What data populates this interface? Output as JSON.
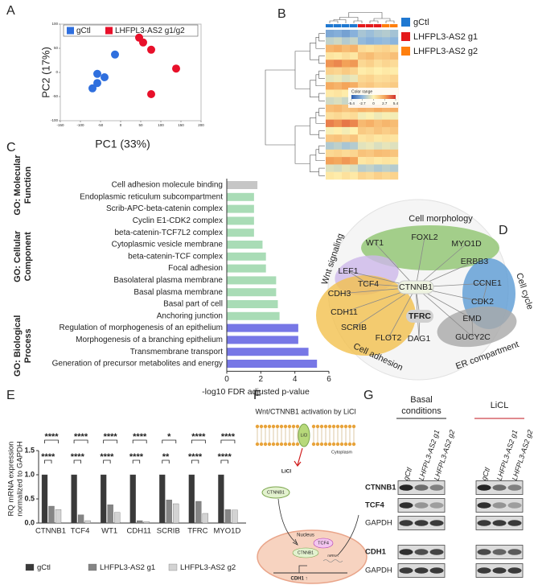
{
  "panel_labels": [
    "A",
    "B",
    "C",
    "D",
    "E",
    "F",
    "G"
  ],
  "chart_data": [
    {
      "type": "scatter",
      "x_label": "PC1 (33%)",
      "y_label": "PC2 (17%)",
      "xlim": [
        -150,
        200
      ],
      "xticks": [
        -150,
        -100,
        -50,
        0,
        50,
        100,
        150,
        200
      ],
      "ylim": [
        -100,
        100
      ],
      "yticks": [
        -100,
        -50,
        0,
        50,
        100
      ],
      "series": [
        {
          "name": "gCtl",
          "color": "#2f6fde",
          "x": [
            -14,
            -58,
            -40,
            -58,
            -70
          ],
          "y": [
            37,
            -3,
            -10,
            -22,
            -33
          ]
        },
        {
          "name": "LHFPL3-AS2 g1/g2",
          "color": "#e8102a",
          "x": [
            46,
            56,
            76,
            138,
            76
          ],
          "y": [
            72,
            62,
            47,
            8,
            -45
          ]
        }
      ]
    },
    {
      "type": "heatmap",
      "legend_title": "Color range",
      "zlim": [
        -5.4,
        5.4
      ],
      "zticks": [
        -5.4,
        -2.7,
        0,
        2.7,
        5.4
      ],
      "colors": [
        "#2c5fb0",
        "#8fb8de",
        "#fff2b0",
        "#f4a55a",
        "#d2322d"
      ],
      "series": [
        {
          "name": "gCtl",
          "color": "#1f78d1",
          "values": [
            [
              -3.2,
              -3.0,
              -3.4,
              -2.9
            ],
            [
              -1.5,
              -1.2,
              -1.8,
              -1.4
            ],
            [
              2.1,
              2.4,
              1.9,
              2.2
            ],
            [
              0.5,
              0.3,
              0.7,
              0.4
            ],
            [
              3.1,
              3.4,
              2.8,
              3.0
            ],
            [
              1.2,
              1.0,
              1.4,
              1.1
            ],
            [
              -0.6,
              -0.4,
              -0.8,
              -0.5
            ],
            [
              2.5,
              2.2,
              2.7,
              2.4
            ],
            [
              0.3,
              0.5,
              0.2,
              0.4
            ],
            [
              -1.1,
              -0.9,
              -1.3,
              -1.0
            ],
            [
              1.8,
              2.0,
              1.6,
              1.9
            ],
            [
              0.7,
              0.9,
              0.6,
              0.8
            ],
            [
              3.6,
              3.2,
              3.8,
              3.4
            ],
            [
              -0.2,
              0.1,
              -0.3,
              0.0
            ],
            [
              1.5,
              1.7,
              1.3,
              1.6
            ],
            [
              -1.9,
              -1.6,
              -2.1,
              -1.8
            ],
            [
              0.9,
              1.1,
              0.8,
              1.0
            ],
            [
              2.8,
              2.6,
              3.0,
              2.7
            ],
            [
              -0.8,
              -1.0,
              -0.6,
              -0.9
            ],
            [
              0.4,
              0.2,
              0.6,
              0.3
            ]
          ]
        },
        {
          "name": "LHFPL3-AS2 g1",
          "color": "#e41a1c",
          "values": [
            [
              -2.1,
              -2.4,
              -2.0
            ],
            [
              -2.6,
              -2.9,
              -2.7
            ],
            [
              0.8,
              0.6,
              0.9
            ],
            [
              1.6,
              1.9,
              1.4
            ],
            [
              0.9,
              1.2,
              0.7
            ],
            [
              0.2,
              0.4,
              0.1
            ],
            [
              0.9,
              1.1,
              0.7
            ],
            [
              1.3,
              1.5,
              1.1
            ],
            [
              0.6,
              0.3,
              0.5
            ],
            [
              0.2,
              0.5,
              0.3
            ],
            [
              2.3,
              2.1,
              2.5
            ],
            [
              -0.3,
              -0.1,
              -0.4
            ],
            [
              2.0,
              2.3,
              1.8
            ],
            [
              1.4,
              1.2,
              1.6
            ],
            [
              0.5,
              0.7,
              0.4
            ],
            [
              -0.7,
              -0.5,
              -0.9
            ],
            [
              1.7,
              1.5,
              1.9
            ],
            [
              0.4,
              0.6,
              0.3
            ],
            [
              -1.7,
              -1.5,
              -1.9
            ],
            [
              1.0,
              0.8,
              1.2
            ]
          ]
        },
        {
          "name": "LHFPL3-AS2 g2",
          "color": "#ff7f0e",
          "values": [
            [
              -1.8,
              -2.2
            ],
            [
              -2.5,
              -2.8
            ],
            [
              1.1,
              0.7
            ],
            [
              1.5,
              1.8
            ],
            [
              1.0,
              0.8
            ],
            [
              0.3,
              0.2
            ],
            [
              0.8,
              1.0
            ],
            [
              1.2,
              1.4
            ],
            [
              0.4,
              0.6
            ],
            [
              0.1,
              0.4
            ],
            [
              2.2,
              2.4
            ],
            [
              -0.2,
              -0.3
            ],
            [
              2.1,
              1.9
            ],
            [
              1.3,
              1.5
            ],
            [
              0.6,
              0.5
            ],
            [
              -0.6,
              -0.8
            ],
            [
              1.8,
              1.6
            ],
            [
              0.5,
              0.4
            ],
            [
              -1.6,
              -1.8
            ],
            [
              0.9,
              1.1
            ]
          ]
        }
      ]
    },
    {
      "type": "barh",
      "x_label": "-log10 FDR adjusted p-value",
      "xlim": [
        0,
        6
      ],
      "xticks": [
        0,
        2,
        4,
        6
      ],
      "groups": [
        {
          "label_lines": [
            "GO: Molecular",
            "Function"
          ],
          "color": "#c6c6c6",
          "label_color": "#8a8a8a",
          "categories": [
            "Cell adhesion molecule binding"
          ],
          "values": [
            1.8
          ]
        },
        {
          "label_lines": [
            "GO: Cellular",
            "Component"
          ],
          "color": "#a9dcb6",
          "label_color": "#8fd3a0",
          "categories": [
            "Endoplasmic reticulum subcompartment",
            "Scrib-APC-beta-catenin complex",
            "Cyclin E1-CDK2 complex",
            "beta-catenin-TCF7L2 complex",
            "Cytoplasmic vesicle membrane",
            "beta-catenin-TCF complex",
            "Focal adhesion",
            "Basolateral plasma membrane",
            "Basal plasma membrane",
            "Basal part of cell",
            "Anchoring junction"
          ],
          "values": [
            1.6,
            1.6,
            1.6,
            1.6,
            2.1,
            2.3,
            2.3,
            2.9,
            2.9,
            3.0,
            3.1
          ]
        },
        {
          "label_lines": [
            "GO: Biological",
            "Process"
          ],
          "color": "#7777e6",
          "label_color": "#8080e8",
          "categories": [
            "Regulation of morphogenesis of an epithelium",
            "Morphogenesis of a branching epithelium",
            "Transmembrane transport",
            "Generation of precursor metabolites and energy"
          ],
          "values": [
            4.2,
            4.2,
            4.8,
            5.3
          ]
        }
      ]
    },
    {
      "type": "grouped_bar",
      "y_label": [
        "RQ mRNA expression",
        "normalized to GAPDH"
      ],
      "ylim": [
        0,
        1.5
      ],
      "yticks": [
        {
          "value": 0,
          "label": "0.0"
        },
        0.5,
        {
          "value": 1,
          "label": "1.0"
        },
        1.5
      ],
      "categories": [
        "CTNNB1",
        "TCF4",
        "WT1",
        "CDH11",
        "SCRIB",
        "TFRC",
        "MYO1D"
      ],
      "series": [
        {
          "name": "gCtl",
          "color": "#3a3a3a",
          "values": [
            1,
            1,
            1,
            1,
            1,
            1,
            1
          ]
        },
        {
          "name": "LHFPL3-AS2 g1",
          "color": "#858585",
          "values": [
            0.35,
            0.17,
            0.38,
            0.05,
            0.48,
            0.45,
            0.28
          ]
        },
        {
          "name": "LHFPL3-AS2 g2",
          "color": "#d3d3d3",
          "values": [
            0.28,
            0.05,
            0.22,
            0.03,
            0.4,
            0.2,
            0.27
          ]
        }
      ],
      "annotations": [
        [
          "****",
          "****"
        ],
        [
          "****",
          "****"
        ],
        [
          "****",
          "****"
        ],
        [
          "****",
          "****"
        ],
        [
          "*",
          "**"
        ],
        [
          "****",
          "****"
        ],
        [
          "****",
          "****"
        ]
      ]
    }
  ],
  "network": {
    "groups": [
      {
        "name": "Cell morphology",
        "color": "#8fc46f"
      },
      {
        "name": "Wnt signaling",
        "color": "#cdb8ea"
      },
      {
        "name": "Cell cycle",
        "color": "#5b9bd5"
      },
      {
        "name": "Cell adhesion",
        "color": "#f2c14e"
      },
      {
        "name": "ER compartment",
        "color": "#a9a9a9"
      }
    ],
    "nodes": [
      "CTNNB1",
      "WT1",
      "FOXL2",
      "MYO1D",
      "ERBB3",
      "LEF1",
      "TCF4",
      "CCNE1",
      "CDK2",
      "CDH3",
      "CDH11",
      "SCRIB",
      "FLOT2",
      "DAG1",
      "TFRC",
      "EMD",
      "GUCY2C"
    ]
  },
  "diagram": {
    "title": "Wnt/CTNNB1 activation by LiCl",
    "labels": {
      "channel": "LiCl",
      "cytoplasm": "Cytoplasm",
      "licl": "LiCl",
      "ctnnb1_cyto": "CTNNB1",
      "nucleus": "Nucleus",
      "tcf4": "TCF4",
      "ctnnb1_nuc": "CTNNB1",
      "mrna": "mRNA",
      "cdh1": "CDH1 ↑"
    }
  },
  "blot": {
    "conditions": [
      {
        "lines": [
          "Basal",
          "conditions"
        ],
        "color": "#222222"
      },
      {
        "lines": [
          "LiCL"
        ],
        "color": "#c0141c"
      }
    ],
    "lanes": [
      "gCtl",
      "LHFPL3-AS2 g1",
      "LHFPL3-AS2 g2"
    ],
    "rows": [
      {
        "name": "CTNNB1",
        "bold": true
      },
      {
        "name": "TCF4",
        "bold": true
      },
      {
        "name": "GAPDH",
        "bold": false
      },
      {
        "name": "CDH1",
        "bold": true
      },
      {
        "name": "GAPDH",
        "bold": false
      }
    ]
  }
}
